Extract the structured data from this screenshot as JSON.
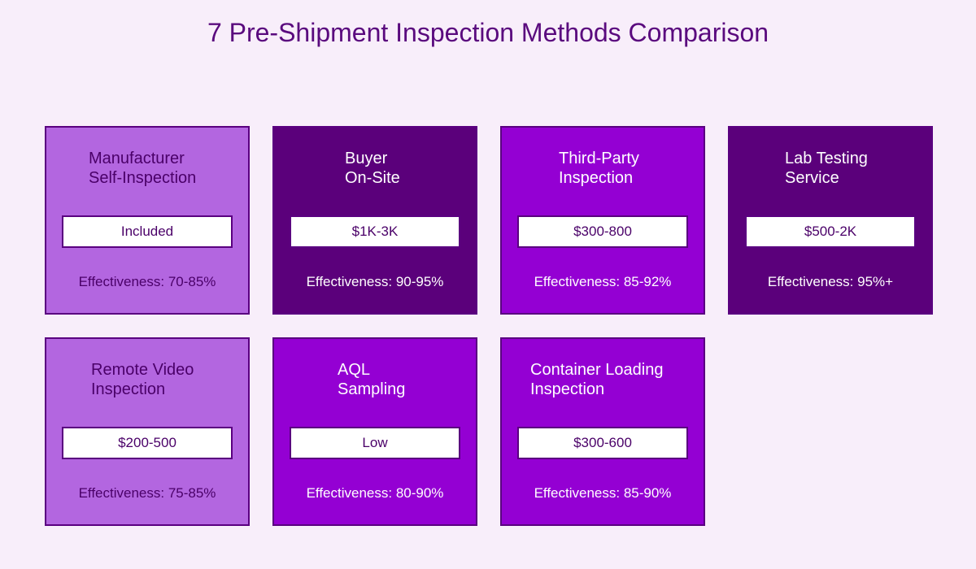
{
  "title": "7 Pre-Shipment Inspection Methods Comparison",
  "methods": [
    {
      "name_line1": "Manufacturer",
      "name_line2": "Self-Inspection",
      "cost": "Included",
      "effectiveness": "Effectiveness: 70-85%",
      "theme": "light",
      "fill": "#b366e0"
    },
    {
      "name_line1": "Buyer",
      "name_line2": "On-Site",
      "cost": "$1K-3K",
      "effectiveness": "Effectiveness: 90-95%",
      "theme": "dark",
      "fill": "#5b007b"
    },
    {
      "name_line1": "Third-Party",
      "name_line2": "Inspection",
      "cost": "$300-800",
      "effectiveness": "Effectiveness: 85-92%",
      "theme": "bright",
      "fill": "#9400d3"
    },
    {
      "name_line1": "Lab Testing",
      "name_line2": "Service",
      "cost": "$500-2K",
      "effectiveness": "Effectiveness: 95%+",
      "theme": "dark",
      "fill": "#5b007b"
    },
    {
      "name_line1": "Remote Video",
      "name_line2": "Inspection",
      "cost": "$200-500",
      "effectiveness": "Effectiveness: 75-85%",
      "theme": "light",
      "fill": "#b366e0"
    },
    {
      "name_line1": "AQL",
      "name_line2": "Sampling",
      "cost": "Low",
      "effectiveness": "Effectiveness: 80-90%",
      "theme": "bright",
      "fill": "#9400d3"
    },
    {
      "name_line1": "Container Loading",
      "name_line2": "Inspection",
      "cost": "$300-600",
      "effectiveness": "Effectiveness: 85-90%",
      "theme": "bright",
      "fill": "#9400d3"
    }
  ]
}
